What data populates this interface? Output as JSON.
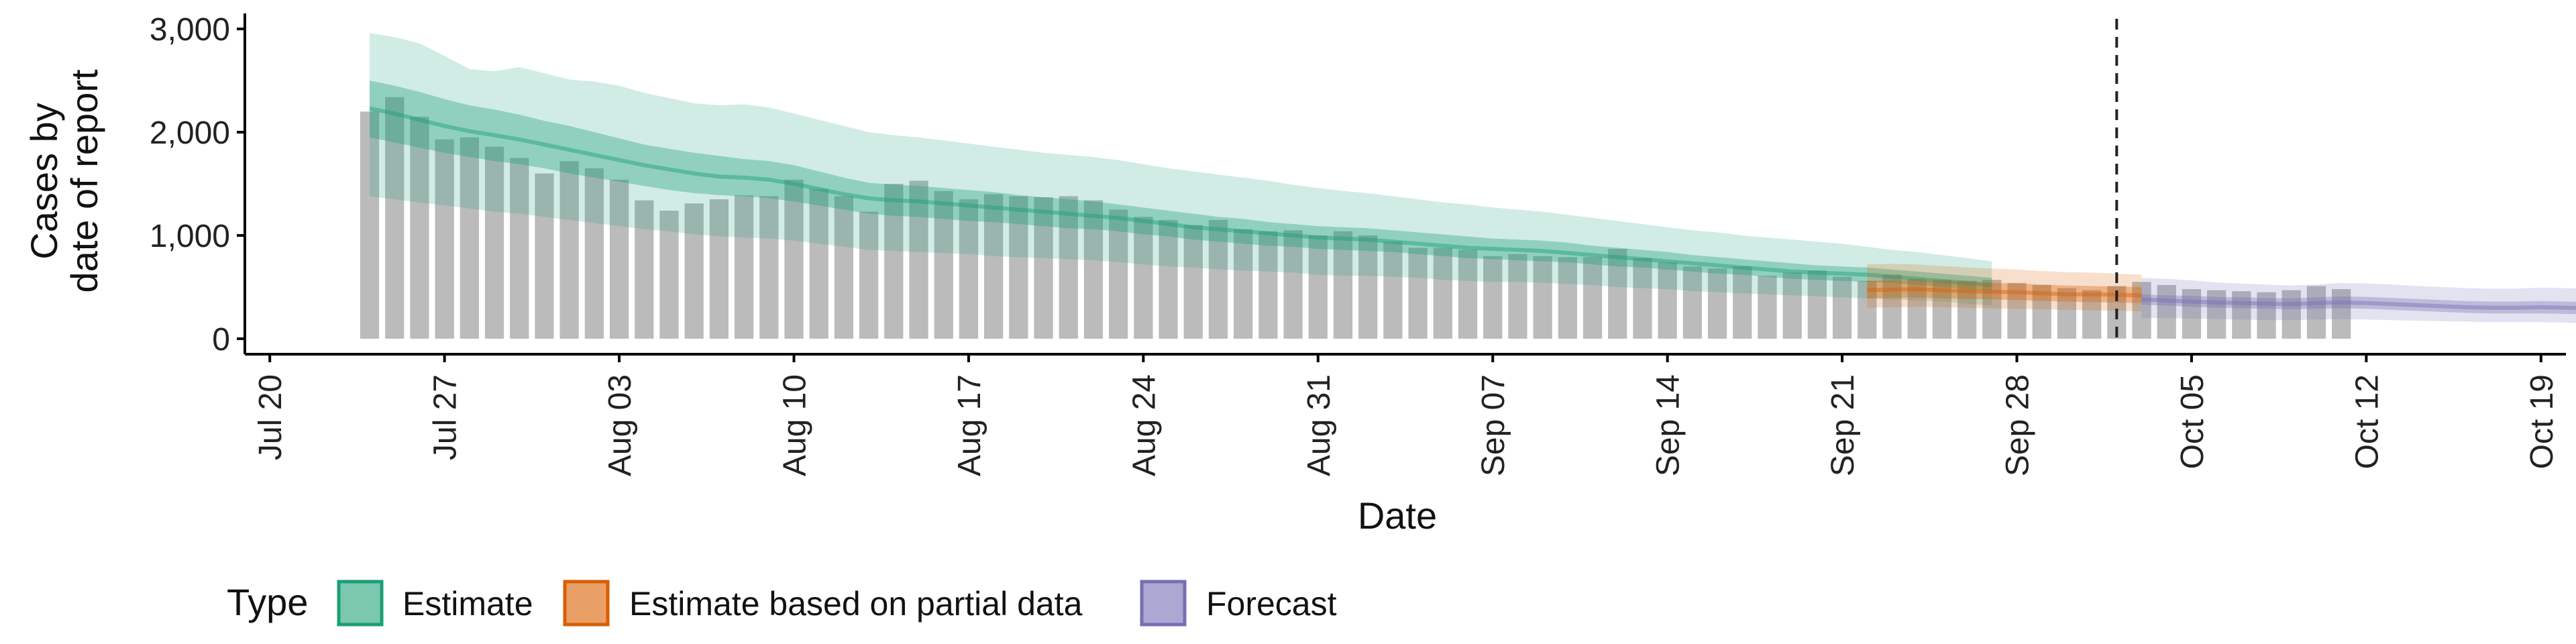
{
  "chart_data": {
    "type": "bar",
    "xlabel": "Date",
    "ylabel_lines": [
      "Cases by",
      "date of report"
    ],
    "x_range": [
      "2020-07-19",
      "2020-10-20"
    ],
    "ylim": [
      -150,
      3150
    ],
    "y_ticks": [
      {
        "value": 0,
        "label": "0"
      },
      {
        "value": 1000,
        "label": "1,000"
      },
      {
        "value": 2000,
        "label": "2,000"
      },
      {
        "value": 3000,
        "label": "3,000"
      }
    ],
    "x_ticks": [
      {
        "date": "2020-07-20",
        "label": "Jul 20"
      },
      {
        "date": "2020-07-27",
        "label": "Jul 27"
      },
      {
        "date": "2020-08-03",
        "label": "Aug 03"
      },
      {
        "date": "2020-08-10",
        "label": "Aug 10"
      },
      {
        "date": "2020-08-17",
        "label": "Aug 17"
      },
      {
        "date": "2020-08-24",
        "label": "Aug 24"
      },
      {
        "date": "2020-08-31",
        "label": "Aug 31"
      },
      {
        "date": "2020-09-07",
        "label": "Sep 07"
      },
      {
        "date": "2020-09-14",
        "label": "Sep 14"
      },
      {
        "date": "2020-09-21",
        "label": "Sep 21"
      },
      {
        "date": "2020-09-28",
        "label": "Sep 28"
      },
      {
        "date": "2020-10-05",
        "label": "Oct 05"
      },
      {
        "date": "2020-10-12",
        "label": "Oct 12"
      },
      {
        "date": "2020-10-19",
        "label": "Oct 19"
      }
    ],
    "vline_date": "2020-10-02",
    "bars": {
      "start_date": "2020-07-24",
      "values": [
        2200,
        2340,
        2150,
        1930,
        1950,
        1860,
        1750,
        1600,
        1720,
        1650,
        1540,
        1340,
        1240,
        1310,
        1350,
        1390,
        1380,
        1540,
        1450,
        1380,
        1230,
        1500,
        1530,
        1430,
        1350,
        1400,
        1380,
        1370,
        1380,
        1340,
        1250,
        1180,
        1150,
        1100,
        1150,
        1060,
        1040,
        1050,
        1000,
        1040,
        1000,
        940,
        880,
        880,
        860,
        800,
        820,
        800,
        790,
        790,
        870,
        780,
        740,
        700,
        680,
        700,
        610,
        640,
        660,
        600,
        560,
        620,
        580,
        570,
        560,
        570,
        540,
        520,
        490,
        470,
        510,
        550,
        520,
        480,
        470,
        460,
        450,
        470,
        510,
        480
      ]
    },
    "series": [
      {
        "name": "Estimate",
        "color": "#1B9E77",
        "start_date": "2020-07-24",
        "median": [
          2230,
          2180,
          2120,
          2060,
          2010,
          1970,
          1930,
          1880,
          1830,
          1780,
          1730,
          1680,
          1640,
          1600,
          1570,
          1560,
          1540,
          1500,
          1450,
          1400,
          1360,
          1340,
          1330,
          1310,
          1290,
          1270,
          1250,
          1230,
          1210,
          1190,
          1170,
          1140,
          1110,
          1080,
          1060,
          1040,
          1020,
          1000,
          980,
          970,
          960,
          940,
          920,
          900,
          880,
          870,
          860,
          850,
          830,
          810,
          790,
          770,
          750,
          730,
          710,
          690,
          670,
          650,
          640,
          630,
          620,
          600,
          580,
          560,
          540,
          520
        ],
        "q50_low": [
          1950,
          1900,
          1850,
          1800,
          1760,
          1720,
          1690,
          1650,
          1600,
          1560,
          1520,
          1480,
          1440,
          1410,
          1390,
          1380,
          1360,
          1330,
          1290,
          1250,
          1210,
          1190,
          1180,
          1160,
          1140,
          1130,
          1110,
          1090,
          1070,
          1060,
          1040,
          1010,
          990,
          960,
          940,
          920,
          900,
          890,
          870,
          860,
          850,
          840,
          820,
          800,
          780,
          770,
          760,
          750,
          740,
          720,
          700,
          690,
          670,
          650,
          630,
          620,
          600,
          580,
          570,
          560,
          550,
          540,
          520,
          500,
          480,
          460
        ],
        "q50_high": [
          2500,
          2450,
          2390,
          2320,
          2260,
          2220,
          2170,
          2110,
          2060,
          2000,
          1940,
          1880,
          1840,
          1800,
          1770,
          1740,
          1720,
          1680,
          1620,
          1560,
          1510,
          1490,
          1480,
          1460,
          1440,
          1420,
          1390,
          1370,
          1350,
          1330,
          1300,
          1270,
          1240,
          1210,
          1180,
          1160,
          1130,
          1110,
          1090,
          1080,
          1070,
          1050,
          1030,
          1010,
          990,
          970,
          960,
          950,
          930,
          900,
          880,
          860,
          840,
          810,
          790,
          770,
          750,
          730,
          710,
          700,
          690,
          670,
          650,
          630,
          610,
          590
        ],
        "q90_low": [
          1380,
          1350,
          1320,
          1290,
          1260,
          1230,
          1210,
          1180,
          1150,
          1120,
          1090,
          1060,
          1040,
          1010,
          990,
          980,
          970,
          950,
          920,
          890,
          860,
          850,
          840,
          830,
          820,
          800,
          790,
          780,
          770,
          760,
          740,
          720,
          700,
          690,
          670,
          660,
          650,
          640,
          620,
          610,
          610,
          600,
          590,
          570,
          560,
          550,
          550,
          540,
          530,
          520,
          500,
          490,
          480,
          460,
          450,
          440,
          430,
          420,
          410,
          400,
          390,
          380,
          370,
          360,
          340,
          320
        ],
        "q90_high": [
          2960,
          2920,
          2860,
          2740,
          2610,
          2590,
          2630,
          2570,
          2510,
          2490,
          2450,
          2380,
          2330,
          2280,
          2260,
          2270,
          2240,
          2180,
          2120,
          2060,
          2000,
          1970,
          1950,
          1920,
          1890,
          1860,
          1830,
          1800,
          1780,
          1760,
          1730,
          1690,
          1650,
          1620,
          1590,
          1560,
          1530,
          1490,
          1460,
          1430,
          1410,
          1380,
          1350,
          1320,
          1300,
          1270,
          1250,
          1230,
          1200,
          1170,
          1140,
          1110,
          1080,
          1050,
          1030,
          1000,
          980,
          960,
          940,
          920,
          890,
          860,
          840,
          810,
          780,
          750
        ]
      },
      {
        "name": "Estimate based on partial data",
        "color": "#D95F02",
        "start_date": "2020-09-22",
        "median": [
          470,
          475,
          480,
          470,
          460,
          455,
          450,
          440,
          430,
          430,
          425,
          420
        ],
        "q50_low": [
          390,
          395,
          400,
          390,
          385,
          380,
          375,
          365,
          360,
          355,
          350,
          345
        ],
        "q50_high": [
          560,
          565,
          565,
          555,
          545,
          540,
          535,
          525,
          515,
          510,
          505,
          500
        ],
        "q90_low": [
          300,
          305,
          310,
          305,
          300,
          295,
          290,
          285,
          280,
          275,
          270,
          265
        ],
        "q90_high": [
          720,
          725,
          720,
          705,
          690,
          680,
          670,
          655,
          645,
          640,
          630,
          620
        ]
      },
      {
        "name": "Forecast",
        "color": "#7570B3",
        "start_date": "2020-10-03",
        "median": [
          380,
          370,
          360,
          350,
          345,
          340,
          335,
          345,
          350,
          345,
          335,
          325,
          315,
          305,
          300,
          300,
          305,
          300,
          295,
          290,
          290,
          285
        ],
        "q50_low": [
          330,
          320,
          310,
          300,
          295,
          290,
          285,
          290,
          295,
          290,
          280,
          270,
          260,
          250,
          245,
          245,
          245,
          240,
          235,
          230,
          230,
          225
        ],
        "q50_high": [
          430,
          420,
          415,
          405,
          400,
          395,
          390,
          400,
          410,
          405,
          395,
          385,
          375,
          365,
          360,
          360,
          365,
          360,
          355,
          350,
          350,
          345
        ],
        "q90_low": [
          200,
          200,
          195,
          190,
          185,
          180,
          180,
          185,
          190,
          185,
          180,
          175,
          170,
          165,
          160,
          160,
          160,
          155,
          150,
          150,
          150,
          145
        ],
        "q90_high": [
          590,
          580,
          565,
          545,
          535,
          525,
          515,
          525,
          540,
          535,
          525,
          510,
          500,
          490,
          485,
          485,
          495,
          490,
          480,
          475,
          475,
          470
        ]
      }
    ],
    "legend": {
      "title": "Type",
      "position": "bottom-left",
      "items": [
        {
          "label": "Estimate",
          "color": "#1B9E77"
        },
        {
          "label": "Estimate based on partial data",
          "color": "#D95F02"
        },
        {
          "label": "Forecast",
          "color": "#7570B3"
        }
      ]
    }
  }
}
